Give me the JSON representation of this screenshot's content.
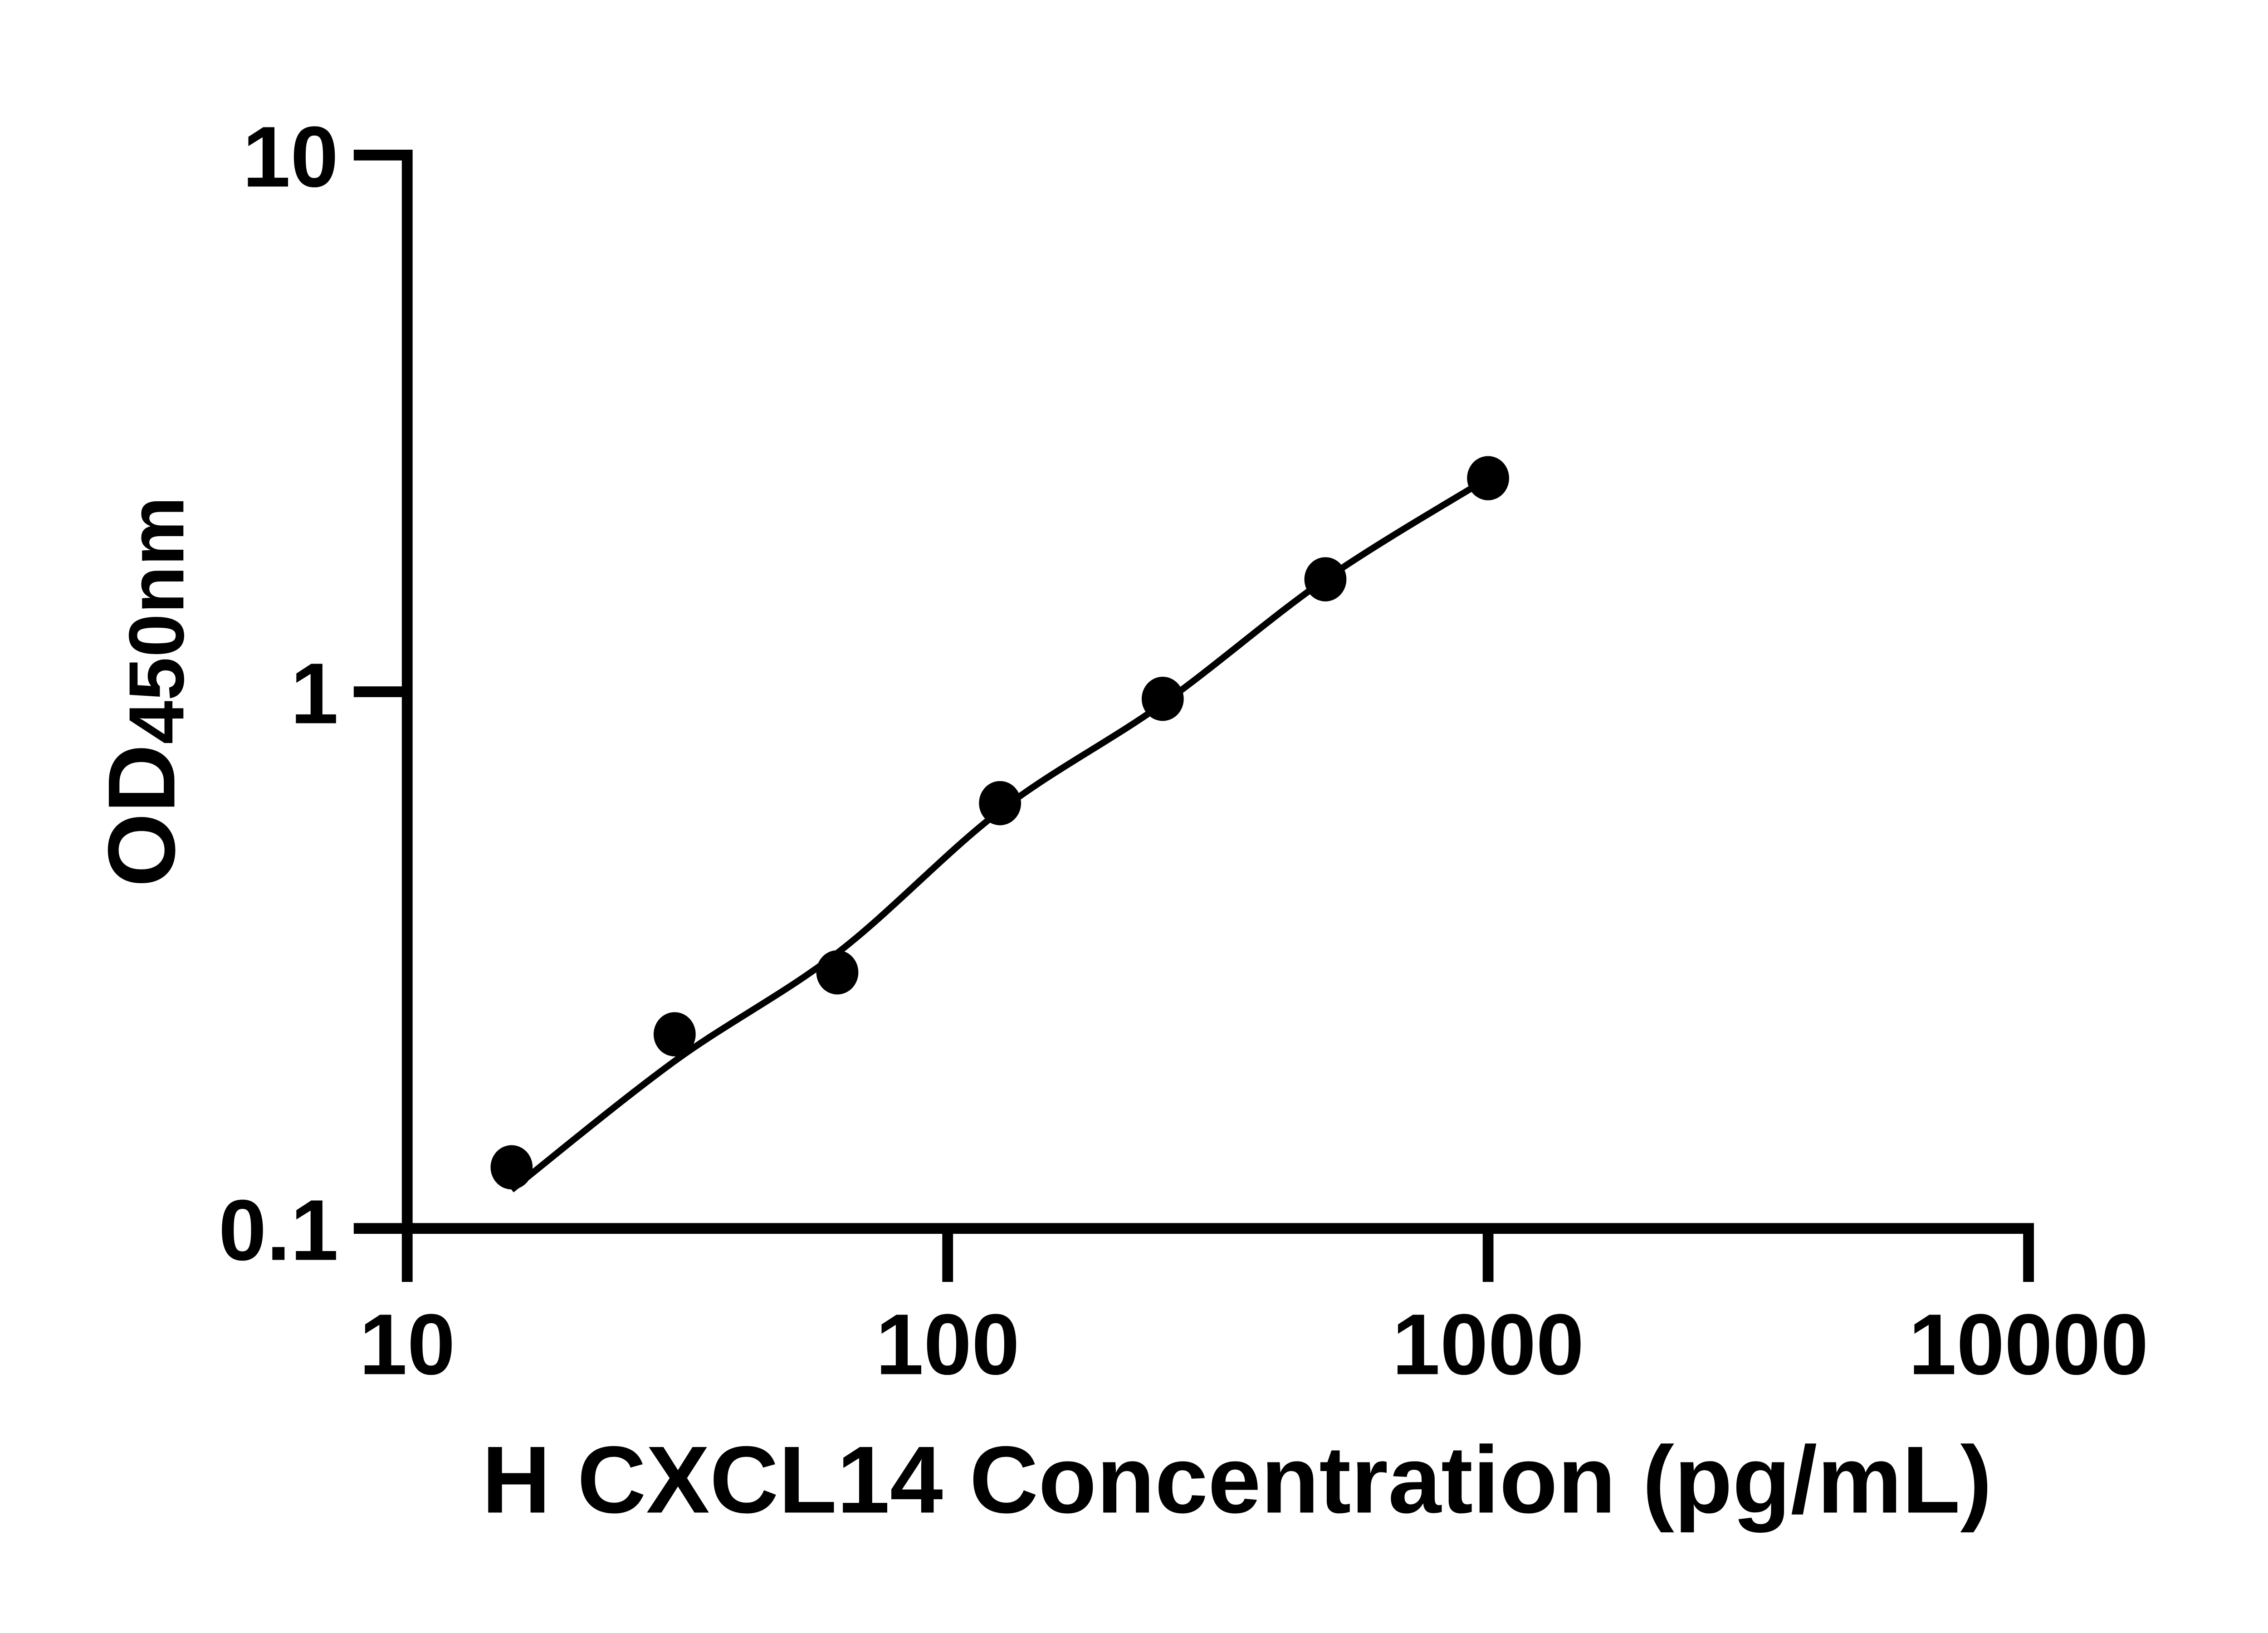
{
  "figure": {
    "background": "#ffffff",
    "ink_color": "#000000"
  },
  "chart_data": {
    "type": "scatter",
    "subtype": "standard-curve-with-fit-line",
    "title": "",
    "xlabel": "H CXCL14 Concentration (pg/mL)",
    "ylabel_main": "OD",
    "ylabel_sub": "450nm",
    "x_scale": "log10",
    "y_scale": "log10",
    "xlim": [
      10,
      10000
    ],
    "ylim": [
      0.1,
      10
    ],
    "grid": "off",
    "legend": "none",
    "marker": "filled-circle",
    "x_ticks": [
      {
        "v": 10,
        "label": "10"
      },
      {
        "v": 100,
        "label": "100"
      },
      {
        "v": 1000,
        "label": "1000"
      },
      {
        "v": 10000,
        "label": "10000"
      }
    ],
    "y_ticks": [
      {
        "v": 0.1,
        "label": "0.1"
      },
      {
        "v": 1,
        "label": "1"
      },
      {
        "v": 10,
        "label": "10"
      }
    ],
    "points": [
      {
        "x": 15.6,
        "od": 0.13
      },
      {
        "x": 31.25,
        "od": 0.23
      },
      {
        "x": 62.5,
        "od": 0.3
      },
      {
        "x": 125,
        "od": 0.62
      },
      {
        "x": 250,
        "od": 0.97
      },
      {
        "x": 500,
        "od": 1.62
      },
      {
        "x": 1000,
        "od": 2.5
      }
    ],
    "fit_curve": [
      {
        "x": 15.6,
        "od": 0.118
      },
      {
        "x": 31.25,
        "od": 0.205
      },
      {
        "x": 62.5,
        "od": 0.326
      },
      {
        "x": 125,
        "od": 0.6
      },
      {
        "x": 250,
        "od": 0.95
      },
      {
        "x": 500,
        "od": 1.62
      },
      {
        "x": 1000,
        "od": 2.5
      }
    ]
  }
}
